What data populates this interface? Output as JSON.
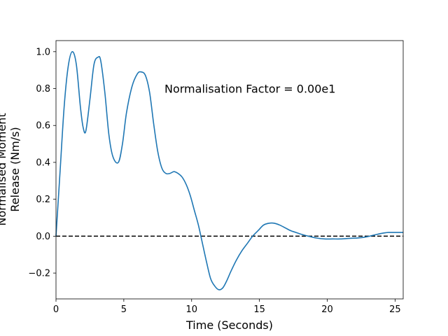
{
  "chart_data": {
    "type": "line",
    "title": "",
    "xlabel": "Time (Seconds)",
    "ylabel_lines": [
      "Normalised Moment",
      "Release (Nm/s)"
    ],
    "xlim": [
      0,
      25.6
    ],
    "ylim": [
      -0.34,
      1.06
    ],
    "x_ticks": [
      0,
      5,
      10,
      15,
      20,
      25
    ],
    "y_ticks": [
      -0.2,
      0.0,
      0.2,
      0.4,
      0.6,
      0.8,
      1.0
    ],
    "y_tick_labels": [
      "−0.2",
      "0.0",
      "0.2",
      "0.4",
      "0.6",
      "0.8",
      "1.0"
    ],
    "grid": false,
    "line_color": "#1f77b4",
    "reference_line": {
      "y": 0.0,
      "style": "dashed",
      "color": "#000000"
    },
    "annotation": {
      "text": "Normalisation Factor = 0.00e1",
      "x": 8.0,
      "y": 0.8
    },
    "series": [
      {
        "x": [
          0,
          0.3,
          0.6,
          0.9,
          1.2,
          1.5,
          1.8,
          2.0,
          2.2,
          2.5,
          2.8,
          3.1,
          3.3,
          3.6,
          3.9,
          4.2,
          4.6,
          4.9,
          5.2,
          5.6,
          6.0,
          6.3,
          6.6,
          6.9,
          7.2,
          7.5,
          7.8,
          8.1,
          8.4,
          8.7,
          9.0,
          9.3,
          9.6,
          9.9,
          10.2,
          10.5,
          10.8,
          11.1,
          11.4,
          11.7,
          12.0,
          12.3,
          12.6,
          12.9,
          13.3,
          13.7,
          14.1,
          14.5,
          14.9,
          15.3,
          15.7,
          16.1,
          16.5,
          16.9,
          17.3,
          17.7,
          18.1,
          18.6,
          19.2,
          19.8,
          20.4,
          21.0,
          21.6,
          22.2,
          22.8,
          23.4,
          24.0,
          24.5,
          25.0,
          25.6
        ],
        "values": [
          0.0,
          0.35,
          0.7,
          0.92,
          1.0,
          0.93,
          0.7,
          0.59,
          0.57,
          0.74,
          0.93,
          0.97,
          0.95,
          0.78,
          0.55,
          0.43,
          0.4,
          0.5,
          0.67,
          0.81,
          0.88,
          0.89,
          0.87,
          0.78,
          0.61,
          0.46,
          0.37,
          0.34,
          0.34,
          0.35,
          0.34,
          0.32,
          0.28,
          0.22,
          0.14,
          0.06,
          -0.04,
          -0.14,
          -0.23,
          -0.27,
          -0.29,
          -0.28,
          -0.24,
          -0.19,
          -0.13,
          -0.08,
          -0.04,
          0.0,
          0.03,
          0.06,
          0.07,
          0.07,
          0.06,
          0.045,
          0.03,
          0.02,
          0.01,
          0.0,
          -0.01,
          -0.015,
          -0.015,
          -0.015,
          -0.012,
          -0.01,
          -0.005,
          0.005,
          0.015,
          0.02,
          0.02,
          0.02
        ]
      }
    ]
  }
}
